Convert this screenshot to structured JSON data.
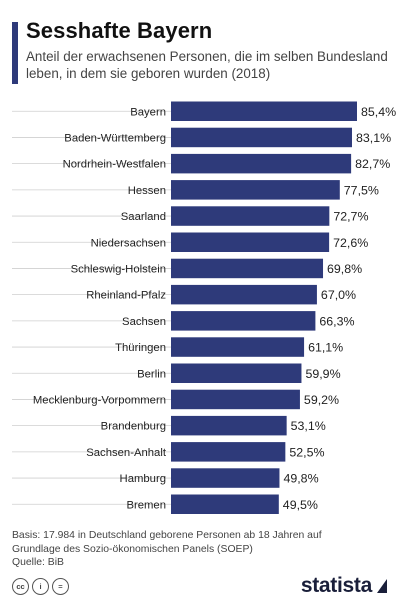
{
  "header": {
    "title": "Sesshafte Bayern",
    "subtitle": "Anteil der erwachsenen Personen, die im selben Bundesland leben, in dem sie geboren wurden (2018)"
  },
  "chart_data": {
    "type": "bar",
    "orientation": "horizontal",
    "categories": [
      "Bayern",
      "Baden-Württemberg",
      "Nordrhein-Westfalen",
      "Hessen",
      "Saarland",
      "Niedersachsen",
      "Schleswig-Holstein",
      "Rheinland-Pfalz",
      "Sachsen",
      "Thüringen",
      "Berlin",
      "Mecklenburg-Vorpommern",
      "Brandenburg",
      "Sachsen-Anhalt",
      "Hamburg",
      "Bremen"
    ],
    "values": [
      85.4,
      83.1,
      82.7,
      77.5,
      72.7,
      72.6,
      69.8,
      67.0,
      66.3,
      61.1,
      59.9,
      59.2,
      53.1,
      52.5,
      49.8,
      49.5
    ],
    "value_labels": [
      "85,4%",
      "83,1%",
      "82,7%",
      "77,5%",
      "72,7%",
      "72,6%",
      "69,8%",
      "67,0%",
      "66,3%",
      "61,1%",
      "59,9%",
      "59,2%",
      "53,1%",
      "52,5%",
      "49,8%",
      "49,5%"
    ],
    "bar_color": "#2e3a7a",
    "xlim": [
      0,
      85.4
    ],
    "grid": true
  },
  "footer": {
    "basis": "Basis: 17.984 in Deutschland geborene Personen ab 18 Jahren auf Grundlage des Sozio-ökonomischen Panels (SOEP)",
    "source": "Quelle: BiB"
  },
  "license_icons": [
    "cc",
    "i",
    "="
  ],
  "brand": {
    "logo_text": "statista",
    "color": "#1a1f3a"
  }
}
